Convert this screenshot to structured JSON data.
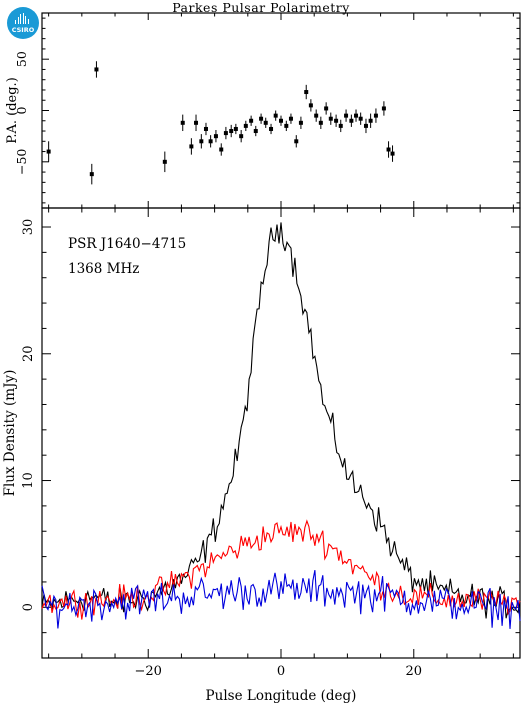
{
  "logo": {
    "text": "CSIRO"
  },
  "chart_data": [
    {
      "type": "scatter",
      "title": "Parkes Pulsar Polarimetry",
      "xlabel": "",
      "ylabel": "P.A. (deg.)",
      "xlim": [
        -36,
        36
      ],
      "ylim": [
        -95,
        95
      ],
      "yticks": [
        -50,
        0,
        50
      ],
      "series": [
        {
          "x": [
            -35.0,
            -28.5,
            -27.8,
            -17.5,
            -14.8,
            -13.5,
            -12.8,
            -12.0,
            -11.3,
            -10.6,
            -9.8,
            -9.0,
            -8.3,
            -7.5,
            -6.8,
            -6.0,
            -5.3,
            -4.5,
            -3.8,
            -3.0,
            -2.3,
            -1.5,
            -0.8,
            0.0,
            0.8,
            1.5,
            2.3,
            3.0,
            3.8,
            4.5,
            5.3,
            6.0,
            6.8,
            7.5,
            8.3,
            9.0,
            9.8,
            10.6,
            11.3,
            12.0,
            12.8,
            13.5,
            14.3,
            15.5,
            16.2,
            16.8
          ],
          "y": [
            -40,
            -62,
            40,
            -50,
            -12,
            -35,
            -12,
            -30,
            -18,
            -30,
            -25,
            -38,
            -22,
            -20,
            -18,
            -25,
            -15,
            -10,
            -20,
            -8,
            -12,
            -18,
            -5,
            -10,
            -15,
            -8,
            -30,
            -12,
            18,
            5,
            -5,
            -12,
            2,
            -8,
            -10,
            -15,
            -5,
            -10,
            -5,
            -8,
            -15,
            -10,
            -5,
            2,
            -38,
            -42
          ],
          "err": [
            10,
            10,
            8,
            10,
            8,
            8,
            8,
            7,
            6,
            6,
            6,
            6,
            6,
            6,
            5,
            6,
            5,
            5,
            5,
            5,
            5,
            5,
            5,
            5,
            5,
            5,
            6,
            6,
            7,
            6,
            6,
            6,
            6,
            6,
            6,
            6,
            6,
            6,
            6,
            6,
            7,
            7,
            7,
            7,
            8,
            8
          ]
        }
      ]
    },
    {
      "type": "line",
      "xlabel": "Pulse Longitude (deg)",
      "ylabel": "Flux Density (mJy)",
      "xlim": [
        -36,
        36
      ],
      "ylim": [
        -4,
        31.5
      ],
      "xticks": [
        -20,
        0,
        20
      ],
      "yticks": [
        0,
        10,
        20,
        30
      ],
      "annotations": [
        "PSR J1640−4715",
        "1368 MHz"
      ],
      "profiles": {
        "total": [
          [
            -36,
            0
          ],
          [
            -34,
            0.3
          ],
          [
            -32,
            0.5
          ],
          [
            -30,
            0.8
          ],
          [
            -28,
            0.8
          ],
          [
            -26,
            0.5
          ],
          [
            -24,
            0.4
          ],
          [
            -22,
            0.6
          ],
          [
            -20,
            0.8
          ],
          [
            -18,
            1.3
          ],
          [
            -16,
            1.8
          ],
          [
            -14,
            2.6
          ],
          [
            -13,
            3.2
          ],
          [
            -12,
            4.0
          ],
          [
            -11,
            5.0
          ],
          [
            -10,
            6.2
          ],
          [
            -9,
            7.8
          ],
          [
            -8,
            9.3
          ],
          [
            -7,
            11.0
          ],
          [
            -6,
            13.5
          ],
          [
            -5,
            17.0
          ],
          [
            -4,
            21.0
          ],
          [
            -3,
            25.0
          ],
          [
            -2,
            28.0
          ],
          [
            -1,
            29.5
          ],
          [
            0,
            30.0
          ],
          [
            1,
            29.0
          ],
          [
            2,
            27.0
          ],
          [
            3,
            25.0
          ],
          [
            4,
            22.5
          ],
          [
            5,
            20.0
          ],
          [
            6,
            17.0
          ],
          [
            7,
            15.0
          ],
          [
            8,
            13.5
          ],
          [
            9,
            12.0
          ],
          [
            10,
            10.5
          ],
          [
            11,
            9.5
          ],
          [
            12,
            9.0
          ],
          [
            13,
            8.5
          ],
          [
            14,
            7.5
          ],
          [
            15,
            6.5
          ],
          [
            16,
            5.5
          ],
          [
            17,
            4.5
          ],
          [
            18,
            3.5
          ],
          [
            19,
            2.8
          ],
          [
            20,
            2.2
          ],
          [
            22,
            1.6
          ],
          [
            24,
            1.3
          ],
          [
            26,
            1.0
          ],
          [
            28,
            0.8
          ],
          [
            30,
            0.6
          ],
          [
            32,
            0.4
          ],
          [
            34,
            0.3
          ],
          [
            36,
            0.2
          ]
        ],
        "linear": [
          [
            -36,
            0.4
          ],
          [
            -30,
            0.5
          ],
          [
            -25,
            0.6
          ],
          [
            -22,
            0.8
          ],
          [
            -20,
            1.0
          ],
          [
            -18,
            1.4
          ],
          [
            -16,
            1.9
          ],
          [
            -14,
            2.5
          ],
          [
            -12,
            3.1
          ],
          [
            -10,
            3.7
          ],
          [
            -8,
            4.3
          ],
          [
            -6,
            4.8
          ],
          [
            -4,
            5.3
          ],
          [
            -2,
            5.7
          ],
          [
            0,
            5.9
          ],
          [
            2,
            6.0
          ],
          [
            4,
            5.9
          ],
          [
            6,
            5.4
          ],
          [
            8,
            4.6
          ],
          [
            10,
            3.7
          ],
          [
            12,
            2.9
          ],
          [
            14,
            2.1
          ],
          [
            16,
            1.5
          ],
          [
            18,
            1.1
          ],
          [
            20,
            0.8
          ],
          [
            25,
            0.6
          ],
          [
            30,
            0.5
          ],
          [
            36,
            0.4
          ]
        ],
        "circular": [
          [
            -36,
            0
          ],
          [
            -30,
            0.3
          ],
          [
            -20,
            0.6
          ],
          [
            -15,
            0.9
          ],
          [
            -10,
            1.1
          ],
          [
            -5,
            1.3
          ],
          [
            0,
            1.4
          ],
          [
            5,
            1.4
          ],
          [
            10,
            1.2
          ],
          [
            15,
            1.0
          ],
          [
            20,
            0.6
          ],
          [
            25,
            0.3
          ],
          [
            30,
            0.1
          ],
          [
            36,
            0
          ]
        ]
      },
      "noise": {
        "total": 1.0,
        "linear": 0.9,
        "circular": 1.2
      },
      "colors": {
        "total": "#000000",
        "linear": "#ff0000",
        "circular": "#0000dd"
      }
    }
  ]
}
